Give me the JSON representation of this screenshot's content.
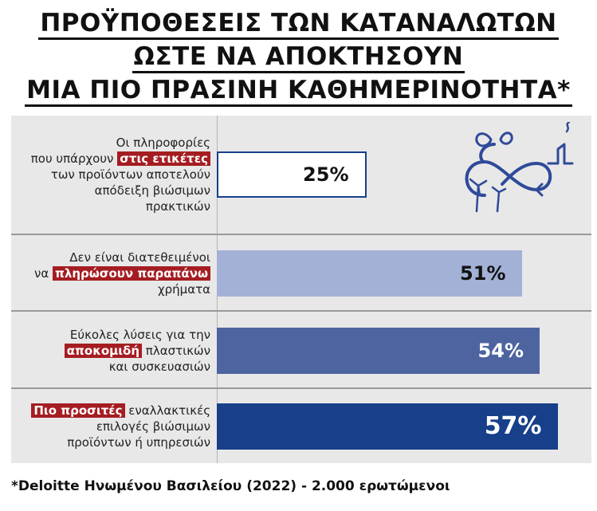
{
  "title": [
    "ΠΡΟΫΠΟΘΕΣΕΙΣ ΤΩΝ ΚΑΤΑΝΑΛΩΤΩΝ",
    "ΩΣΤΕ ΝΑ ΑΠΟΚΤΗΣΟΥΝ",
    "ΜΙΑ ΠΙΟ ΠΡΑΣΙΝΗ ΚΑΘΗΜΕΡΙΝΟΤΗΤΑ*"
  ],
  "chart_data": {
    "type": "bar",
    "orientation": "horizontal",
    "categories": [
      "Οι πληροφορίες που υπάρχουν στις ετικέτες των προϊόντων αποτελούν απόδειξη βιώσιμων πρακτικών",
      "Δεν είναι διατεθειμένοι να πληρώσουν παραπάνω χρήματα",
      "Εύκολες λύσεις για την αποκομιδή πλαστικών και συσκευασιών",
      "Πιο προσιτές εναλλακτικές επιλογές βιώσιμων προϊόντων ή υπηρεσιών"
    ],
    "values": [
      25,
      51,
      54,
      57
    ],
    "value_labels": [
      "25%",
      "51%",
      "54%",
      "57%"
    ],
    "colors": [
      "#ffffff",
      "#a3b1d6",
      "#4d64a0",
      "#173f8a"
    ],
    "label_lines": [
      [
        [
          {
            "t": "Οι πληροφορίες"
          }
        ],
        [
          {
            "t": "που υπάρχουν "
          },
          {
            "t": "στις ετικέτες",
            "hl": true
          }
        ],
        [
          {
            "t": "των προϊόντων αποτελούν"
          }
        ],
        [
          {
            "t": "απόδειξη βιώσιμων"
          }
        ],
        [
          {
            "t": "πρακτικών"
          }
        ]
      ],
      [
        [
          {
            "t": "Δεν είναι διατεθειμένοι"
          }
        ],
        [
          {
            "t": "να "
          },
          {
            "t": "πληρώσουν παραπάνω",
            "hl": true
          }
        ],
        [
          {
            "t": "χρήματα"
          }
        ]
      ],
      [
        [
          {
            "t": "Εύκολες λύσεις για την"
          }
        ],
        [
          {
            "t": "αποκομιδή",
            "hl": true
          },
          {
            "t": " πλαστικών"
          }
        ],
        [
          {
            "t": "και συσκευασιών"
          }
        ]
      ],
      [
        [
          {
            "t": "Πιο προσιτές",
            "hl": true
          },
          {
            "t": " εναλλακτικές"
          }
        ],
        [
          {
            "t": "επιλογές βιώσιμων"
          }
        ],
        [
          {
            "t": "προϊόντων ή υπηρεσιών"
          }
        ]
      ]
    ]
  },
  "footnote": "*Deloitte Ηνωμένου Βασιλείου (2022) - 2.000 ερωτώμενοι",
  "icons": [
    "recycle-infinity-icon"
  ]
}
